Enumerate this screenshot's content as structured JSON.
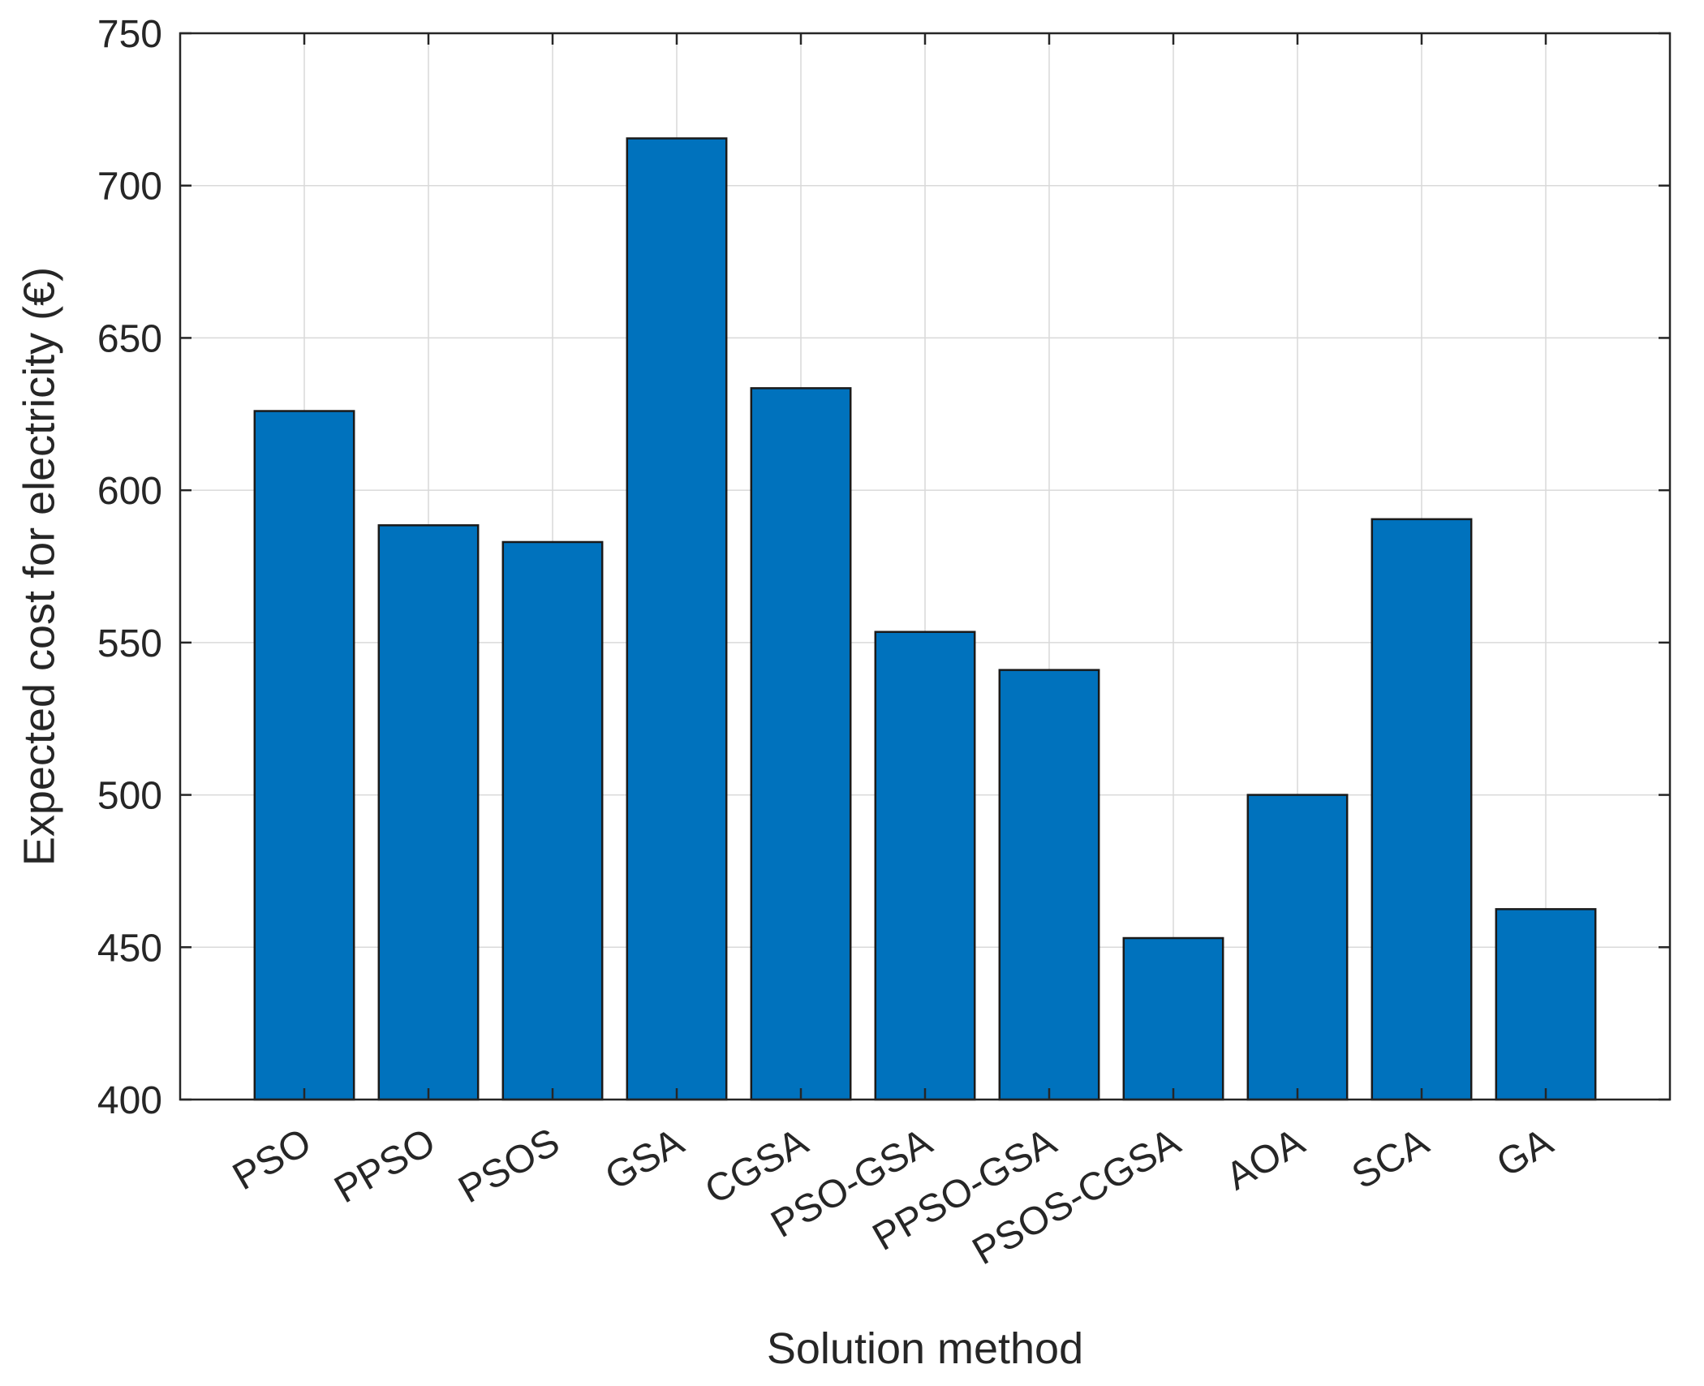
{
  "chart_data": {
    "type": "bar",
    "categories": [
      "PSO",
      "PPSO",
      "PSOS",
      "GSA",
      "CGSA",
      "PSO-GSA",
      "PPSO-GSA",
      "PSOS-CGSA",
      "AOA",
      "SCA",
      "GA"
    ],
    "values": [
      626,
      588.5,
      583,
      715.5,
      633.5,
      553.5,
      541,
      453,
      500,
      590.5,
      462.5
    ],
    "xlabel": "Solution method",
    "ylabel": "Expected cost for electricity (€)",
    "ylim": [
      400,
      750
    ],
    "yticks": [
      400,
      450,
      500,
      550,
      600,
      650,
      700,
      750
    ],
    "grid": true,
    "bar_color": "#0072BD",
    "xtick_rotation": -30
  }
}
